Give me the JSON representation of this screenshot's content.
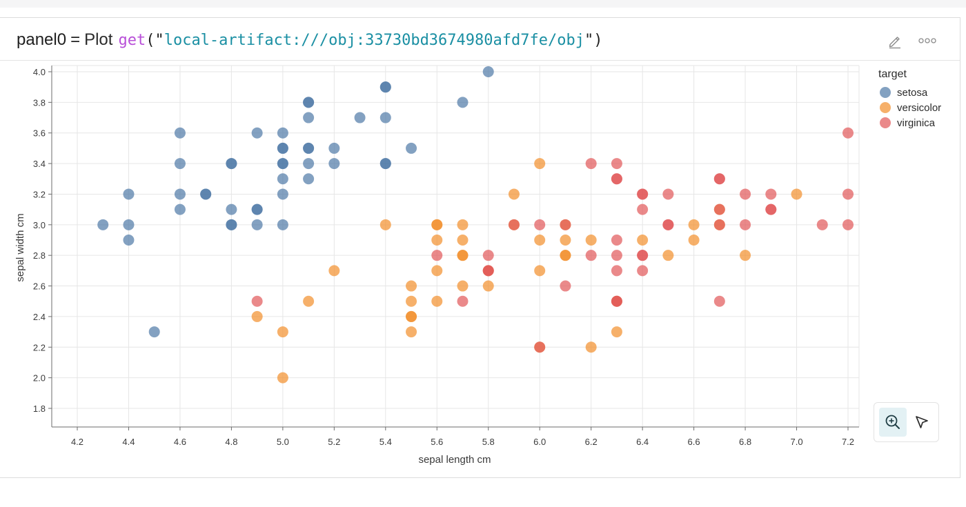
{
  "expression": {
    "variable": "panel0",
    "operator": "=",
    "function": "Plot",
    "call": "get",
    "open": "(\"",
    "argument": "local-artifact:///obj:33730bd3674980afd7fe/obj",
    "close": "\")"
  },
  "header_icons": [
    "pencil-icon",
    "more-horizontal-icon"
  ],
  "toolbar": {
    "tools": [
      {
        "name": "zoom-in-tool",
        "icon": "zoom-in-icon",
        "active": true
      },
      {
        "name": "select-tool",
        "icon": "pointer-arrow-icon",
        "active": false
      }
    ]
  },
  "colors": {
    "setosa": "#4e79a7",
    "versicolor": "#f28e2b",
    "virginica": "#e15759",
    "grid": "#e6e6e6",
    "axis": "#6b6b6b",
    "zoom_active_bg": "#e3f1f4"
  },
  "chart_data": {
    "type": "scatter",
    "xlabel": "sepal length cm",
    "ylabel": "sepal width cm",
    "xlim": [
      4.2,
      7.2
    ],
    "ylim": [
      1.8,
      4.0
    ],
    "xticks": [
      "4.2",
      "4.4",
      "4.6",
      "4.8",
      "5.0",
      "5.2",
      "5.4",
      "5.6",
      "5.8",
      "6.0",
      "6.2",
      "6.4",
      "6.6",
      "6.8",
      "7.0",
      "7.2"
    ],
    "yticks": [
      "4.0",
      "3.8",
      "3.6",
      "3.4",
      "3.2",
      "3.0",
      "2.8",
      "2.6",
      "2.4",
      "2.2",
      "2.0",
      "1.8"
    ],
    "grid": true,
    "legend": {
      "title": "target",
      "position": "top-right",
      "entries": [
        "setosa",
        "versicolor",
        "virginica"
      ]
    },
    "series": [
      {
        "name": "setosa",
        "points": [
          [
            4.3,
            3.0
          ],
          [
            4.4,
            3.2
          ],
          [
            4.4,
            3.0
          ],
          [
            4.4,
            2.9
          ],
          [
            4.5,
            2.3
          ],
          [
            4.6,
            3.6
          ],
          [
            4.6,
            3.4
          ],
          [
            4.6,
            3.2
          ],
          [
            4.6,
            3.1
          ],
          [
            4.7,
            3.2
          ],
          [
            4.7,
            3.2
          ],
          [
            4.8,
            3.4
          ],
          [
            4.8,
            3.4
          ],
          [
            4.8,
            3.1
          ],
          [
            4.8,
            3.0
          ],
          [
            4.8,
            3.0
          ],
          [
            4.9,
            3.6
          ],
          [
            4.9,
            3.1
          ],
          [
            4.9,
            3.1
          ],
          [
            4.9,
            3.0
          ],
          [
            5.0,
            3.6
          ],
          [
            5.0,
            3.5
          ],
          [
            5.0,
            3.5
          ],
          [
            5.0,
            3.4
          ],
          [
            5.0,
            3.4
          ],
          [
            5.0,
            3.3
          ],
          [
            5.0,
            3.2
          ],
          [
            5.0,
            3.0
          ],
          [
            5.1,
            3.8
          ],
          [
            5.1,
            3.8
          ],
          [
            5.1,
            3.7
          ],
          [
            5.1,
            3.5
          ],
          [
            5.1,
            3.5
          ],
          [
            5.1,
            3.4
          ],
          [
            5.1,
            3.3
          ],
          [
            5.2,
            3.5
          ],
          [
            5.2,
            3.4
          ],
          [
            5.3,
            3.7
          ],
          [
            5.4,
            3.9
          ],
          [
            5.4,
            3.9
          ],
          [
            5.4,
            3.7
          ],
          [
            5.4,
            3.4
          ],
          [
            5.4,
            3.4
          ],
          [
            5.5,
            3.5
          ],
          [
            5.7,
            3.8
          ],
          [
            5.8,
            4.0
          ]
        ]
      },
      {
        "name": "versicolor",
        "points": [
          [
            4.9,
            2.4
          ],
          [
            5.0,
            2.3
          ],
          [
            5.0,
            2.0
          ],
          [
            5.1,
            2.5
          ],
          [
            5.2,
            2.7
          ],
          [
            5.4,
            3.0
          ],
          [
            5.5,
            2.6
          ],
          [
            5.5,
            2.5
          ],
          [
            5.5,
            2.4
          ],
          [
            5.5,
            2.4
          ],
          [
            5.5,
            2.3
          ],
          [
            5.6,
            3.0
          ],
          [
            5.6,
            3.0
          ],
          [
            5.6,
            2.9
          ],
          [
            5.6,
            2.7
          ],
          [
            5.6,
            2.5
          ],
          [
            5.7,
            3.0
          ],
          [
            5.7,
            2.9
          ],
          [
            5.7,
            2.8
          ],
          [
            5.7,
            2.8
          ],
          [
            5.7,
            2.6
          ],
          [
            5.8,
            2.7
          ],
          [
            5.8,
            2.6
          ],
          [
            5.9,
            3.2
          ],
          [
            5.9,
            3.0
          ],
          [
            6.0,
            3.4
          ],
          [
            6.0,
            2.9
          ],
          [
            6.0,
            2.7
          ],
          [
            6.0,
            2.2
          ],
          [
            6.1,
            3.0
          ],
          [
            6.1,
            2.9
          ],
          [
            6.1,
            2.8
          ],
          [
            6.1,
            2.8
          ],
          [
            6.2,
            2.9
          ],
          [
            6.2,
            2.2
          ],
          [
            6.3,
            2.5
          ],
          [
            6.3,
            2.3
          ],
          [
            6.4,
            2.9
          ],
          [
            6.5,
            2.8
          ],
          [
            6.6,
            3.0
          ],
          [
            6.6,
            2.9
          ],
          [
            6.7,
            3.1
          ],
          [
            6.7,
            3.0
          ],
          [
            6.8,
            2.8
          ],
          [
            7.0,
            3.2
          ]
        ]
      },
      {
        "name": "virginica",
        "points": [
          [
            4.9,
            2.5
          ],
          [
            5.6,
            2.8
          ],
          [
            5.7,
            2.5
          ],
          [
            5.8,
            2.8
          ],
          [
            5.8,
            2.7
          ],
          [
            5.8,
            2.7
          ],
          [
            5.9,
            3.0
          ],
          [
            6.0,
            3.0
          ],
          [
            6.0,
            2.2
          ],
          [
            6.1,
            3.0
          ],
          [
            6.1,
            2.6
          ],
          [
            6.2,
            3.4
          ],
          [
            6.2,
            2.8
          ],
          [
            6.3,
            3.4
          ],
          [
            6.3,
            3.3
          ],
          [
            6.3,
            3.3
          ],
          [
            6.3,
            2.9
          ],
          [
            6.3,
            2.8
          ],
          [
            6.3,
            2.7
          ],
          [
            6.3,
            2.5
          ],
          [
            6.3,
            2.5
          ],
          [
            6.4,
            3.2
          ],
          [
            6.4,
            3.2
          ],
          [
            6.4,
            3.1
          ],
          [
            6.4,
            2.8
          ],
          [
            6.4,
            2.8
          ],
          [
            6.4,
            2.7
          ],
          [
            6.5,
            3.2
          ],
          [
            6.5,
            3.0
          ],
          [
            6.5,
            3.0
          ],
          [
            6.7,
            3.3
          ],
          [
            6.7,
            3.3
          ],
          [
            6.7,
            3.1
          ],
          [
            6.7,
            3.0
          ],
          [
            6.7,
            2.5
          ],
          [
            6.8,
            3.2
          ],
          [
            6.8,
            3.0
          ],
          [
            6.9,
            3.2
          ],
          [
            6.9,
            3.1
          ],
          [
            6.9,
            3.1
          ],
          [
            7.1,
            3.0
          ],
          [
            7.2,
            3.6
          ],
          [
            7.2,
            3.2
          ],
          [
            7.2,
            3.0
          ]
        ]
      }
    ]
  }
}
